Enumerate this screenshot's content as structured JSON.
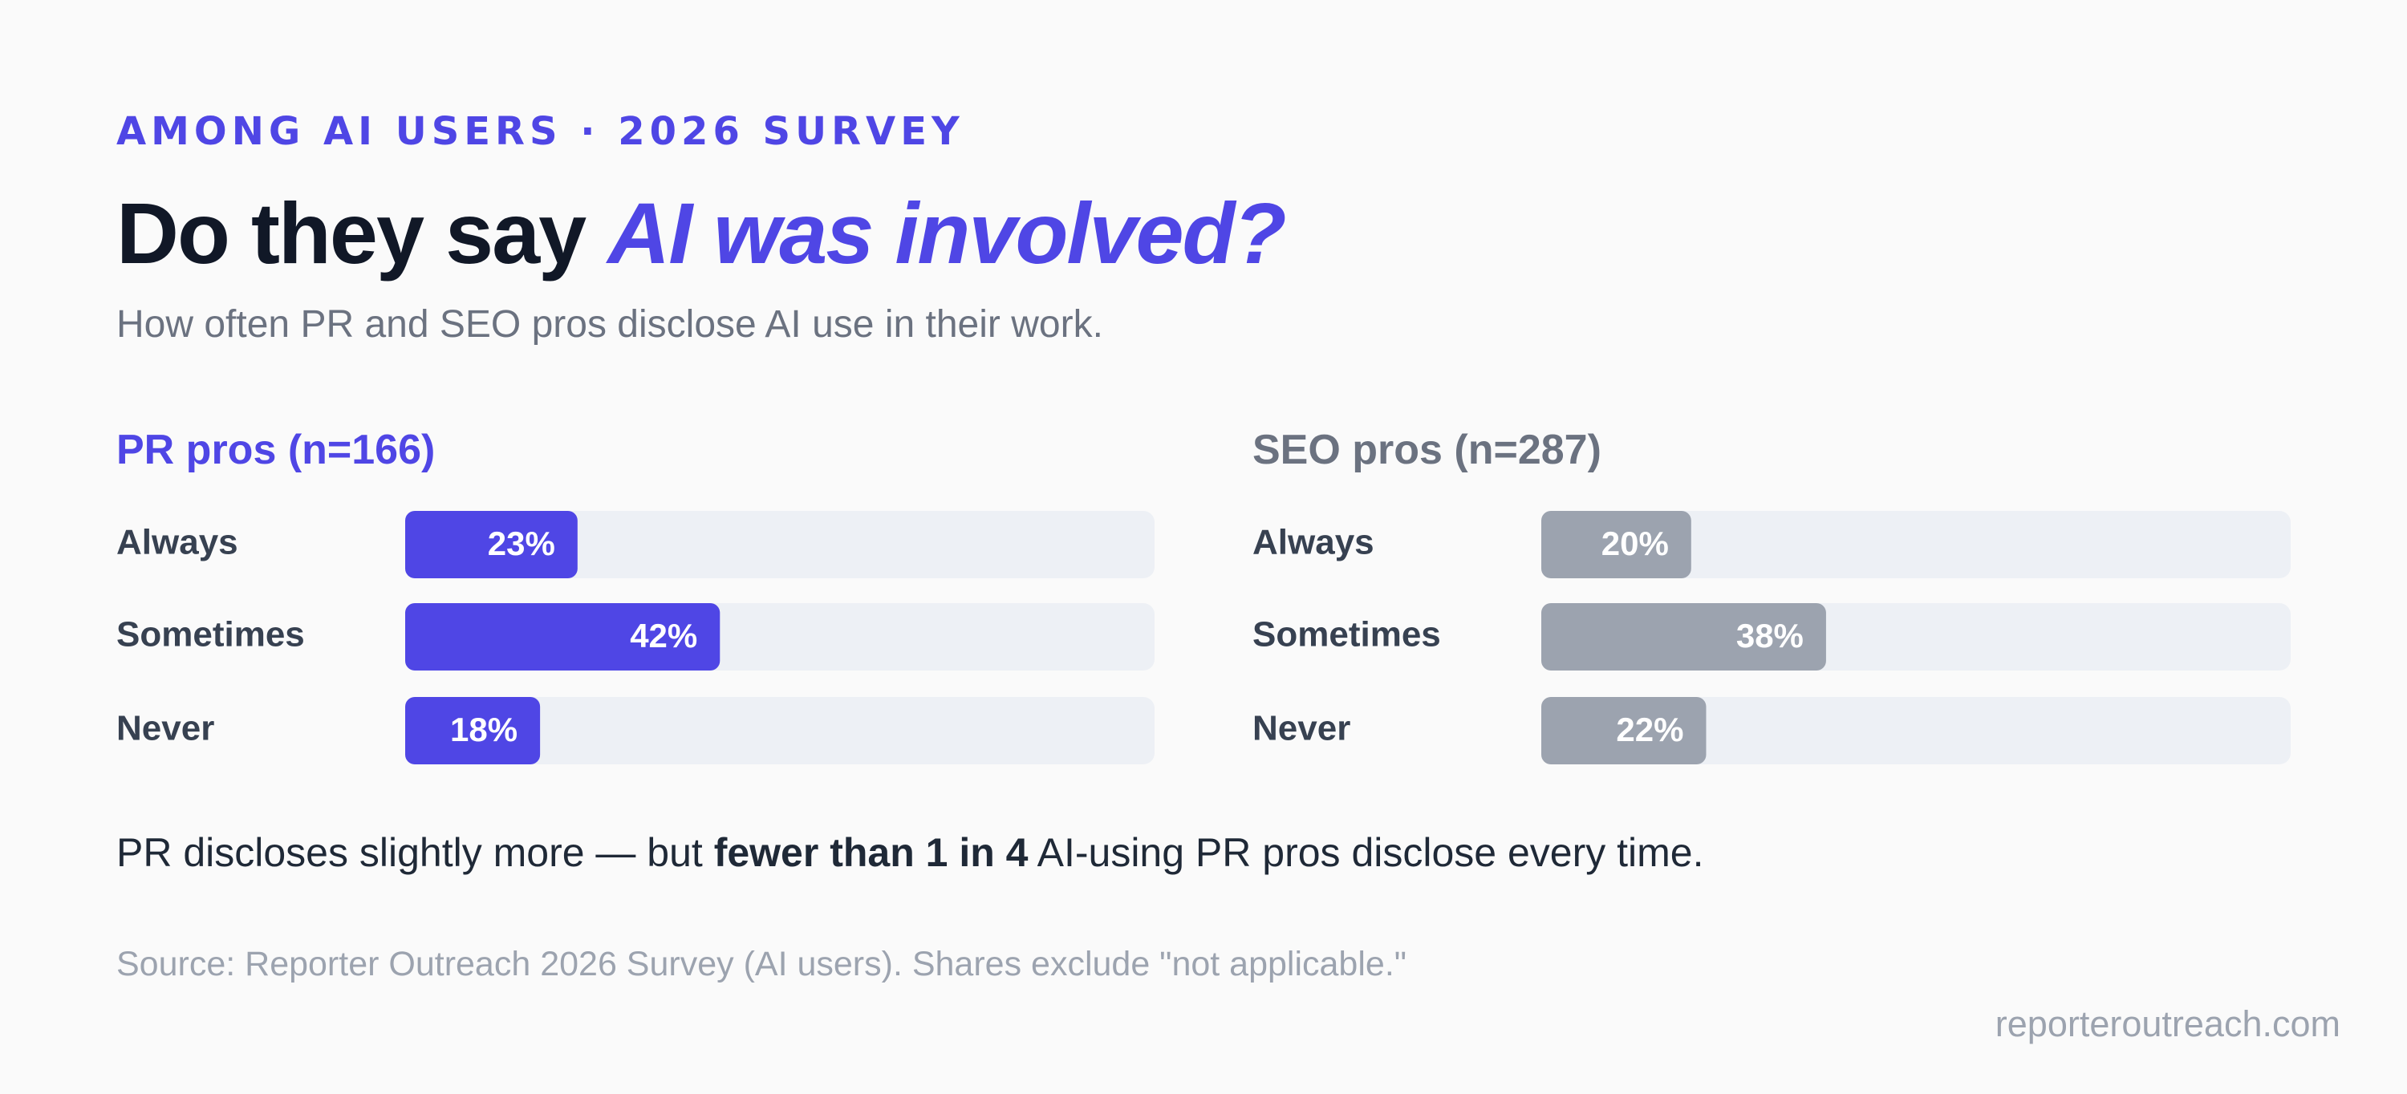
{
  "header": {
    "kicker": "AMONG AI USERS · 2026 SURVEY",
    "title": "Do they say ",
    "title_highlight": "AI was involved?",
    "subtitle": "How often PR and SEO pros disclose AI use in their work."
  },
  "chart_data": [
    {
      "type": "bar",
      "orientation": "horizontal",
      "title": "PR pros (n=166)",
      "categories": [
        "Always",
        "Sometimes",
        "Never"
      ],
      "values": [
        23,
        42,
        18
      ],
      "value_labels": [
        "23%",
        "42%",
        "18%"
      ],
      "color": "#4f46e5",
      "xlim": [
        0,
        100
      ]
    },
    {
      "type": "bar",
      "orientation": "horizontal",
      "title": "SEO pros (n=287)",
      "categories": [
        "Always",
        "Sometimes",
        "Never"
      ],
      "values": [
        20,
        38,
        22
      ],
      "value_labels": [
        "20%",
        "38%",
        "22%"
      ],
      "color": "#9ca3af",
      "xlim": [
        0,
        100
      ]
    }
  ],
  "takeaway": {
    "before": "PR discloses slightly more — but ",
    "bold": "fewer than 1 in 4",
    "after": " AI-using PR pros disclose every time."
  },
  "source": "Source: Reporter Outreach 2026 Survey (AI users). Shares exclude \"not applicable.\"",
  "site": "reporteroutreach.com"
}
